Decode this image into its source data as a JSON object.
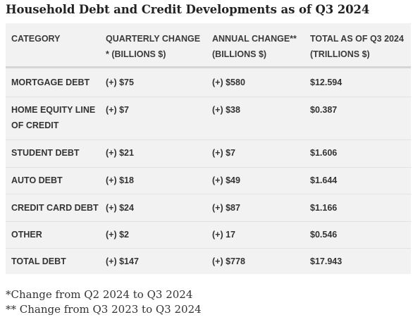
{
  "title": "Household Debt and Credit Developments as of Q3 2024",
  "table": {
    "headers": [
      [
        "CATEGORY"
      ],
      [
        "QUARTERLY CHANGE",
        "* (BILLIONS $)"
      ],
      [
        "ANNUAL CHANGE**",
        "(BILLIONS $)"
      ],
      [
        "TOTAL AS OF Q3 2024",
        "(TRILLIONS $)"
      ]
    ],
    "rows": [
      {
        "category": [
          "MORTGAGE DEBT"
        ],
        "quarterly": "(+) $75",
        "annual": "(+) $580",
        "total": "$12.594"
      },
      {
        "category": [
          "HOME EQUITY LINE",
          "OF CREDIT"
        ],
        "quarterly": "(+) $7",
        "annual": "(+) $38",
        "total": "$0.387"
      },
      {
        "category": [
          "STUDENT DEBT"
        ],
        "quarterly": "(+) $21",
        "annual": "(+) $7",
        "total": "$1.606"
      },
      {
        "category": [
          "AUTO DEBT"
        ],
        "quarterly": "(+) $18",
        "annual": "(+) $49",
        "total": "$1.644"
      },
      {
        "category": [
          "CREDIT CARD DEBT"
        ],
        "quarterly": "(+) $24",
        "annual": "(+) $87",
        "total": "$1.166"
      },
      {
        "category": [
          "OTHER"
        ],
        "quarterly": "(+) $2",
        "annual": "(+) 17",
        "total": "$0.546"
      },
      {
        "category": [
          "TOTAL DEBT"
        ],
        "quarterly": "(+) $147",
        "annual": "(+) $778",
        "total": "$17.943"
      }
    ]
  },
  "footnotes": [
    "*Change from Q2 2024 to Q3 2024",
    "** Change from Q3 2023 to Q3 2024"
  ]
}
